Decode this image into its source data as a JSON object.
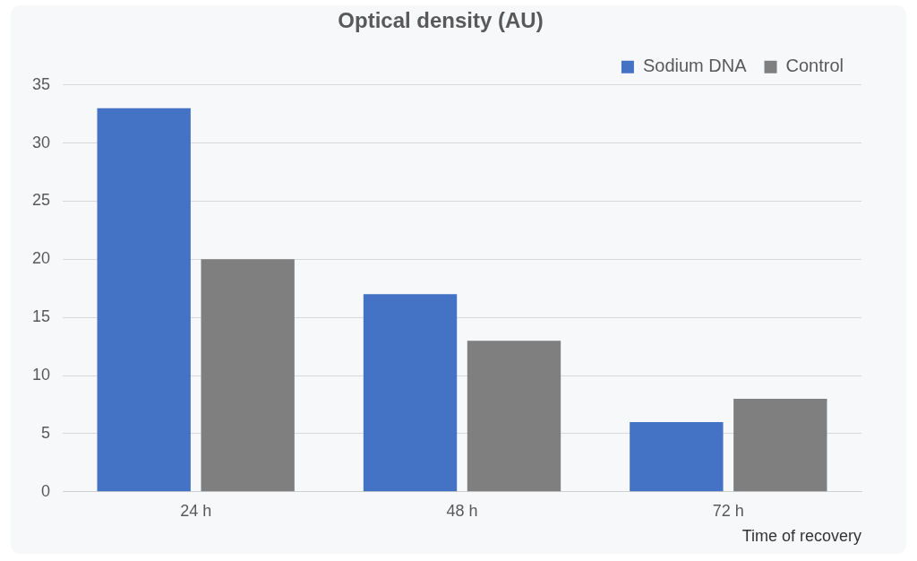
{
  "chart_data": {
    "type": "bar",
    "title": "Optical density (AU)",
    "x_label": "Time of recovery",
    "categories": [
      "24 h",
      "48 h",
      "72 h"
    ],
    "series": [
      {
        "name": "Sodium DNA",
        "color": "#4472c4",
        "values": [
          33,
          17,
          6
        ]
      },
      {
        "name": "Control",
        "color": "#7f7f7f",
        "values": [
          20,
          13,
          8
        ]
      }
    ],
    "ylim": [
      0,
      35
    ],
    "yticks": [
      0,
      5,
      10,
      15,
      20,
      25,
      30,
      35
    ],
    "grid": true,
    "legend": "upper right"
  }
}
